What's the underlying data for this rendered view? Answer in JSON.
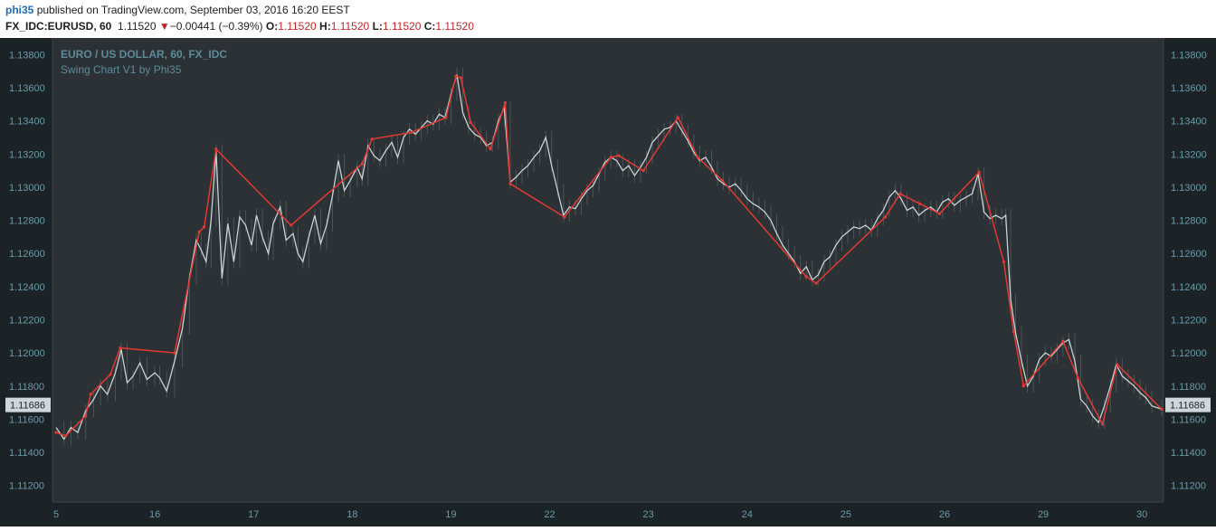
{
  "header": {
    "user": "phi35",
    "published_text": "published on TradingView.com, September 03, 2016 16:20 EEST",
    "symbol": "FX_IDC:EURUSD, 60",
    "last": "1.11520",
    "change": "−0.00441 (−0.39%)",
    "o_label": "O:",
    "o_value": "1.11520",
    "h_label": "H:",
    "h_value": "1.11520",
    "l_label": "L:",
    "l_value": "1.11520",
    "c_label": "C:",
    "c_value": "1.11520"
  },
  "colors": {
    "background": "#243033",
    "swing_line": "#e03a33",
    "price_line": "#c9d3d6",
    "axis_text": "#6a9aab",
    "title_text": "#5e8b9b"
  },
  "chart_data": {
    "type": "line",
    "title": "EURO / US DOLLAR, 60, FX_IDC",
    "subtitle": "Swing Chart V1 by Phi35",
    "xlabel": "",
    "ylabel": "",
    "ylim": [
      1.111,
      1.139
    ],
    "y_ticks": [
      "1.11200",
      "1.11400",
      "1.11600",
      "1.11800",
      "1.12000",
      "1.12200",
      "1.12400",
      "1.12600",
      "1.12800",
      "1.13000",
      "1.13200",
      "1.13400",
      "1.13600",
      "1.13800"
    ],
    "y_tick_values": [
      1.112,
      1.114,
      1.116,
      1.118,
      1.12,
      1.122,
      1.124,
      1.126,
      1.128,
      1.13,
      1.132,
      1.134,
      1.136,
      1.138
    ],
    "x_range": [
      0,
      11.2
    ],
    "x_ticks": [
      "5",
      "16",
      "17",
      "18",
      "19",
      "22",
      "23",
      "24",
      "25",
      "26",
      "29",
      "30"
    ],
    "x_tick_positions": [
      0,
      1,
      2,
      3,
      4,
      5,
      6,
      7,
      8,
      9,
      10,
      11
    ],
    "current_price_label": "1.11686",
    "current_price": 1.11686,
    "grid": false,
    "series": [
      {
        "kind": "swing",
        "points": [
          [
            0,
            1.1152
          ],
          [
            0.1,
            1.115
          ],
          [
            0.3,
            1.1162
          ],
          [
            0.35,
            1.1175
          ],
          [
            0.55,
            1.1187
          ],
          [
            0.65,
            1.1203
          ],
          [
            1.2,
            1.12
          ],
          [
            1.45,
            1.1273
          ],
          [
            1.5,
            1.1276
          ],
          [
            1.62,
            1.1323
          ],
          [
            2.38,
            1.1277
          ],
          [
            3.1,
            1.1314
          ],
          [
            3.2,
            1.1329
          ],
          [
            3.6,
            1.1333
          ],
          [
            3.95,
            1.1342
          ],
          [
            4.05,
            1.1367
          ],
          [
            4.1,
            1.1366
          ],
          [
            4.2,
            1.1339
          ],
          [
            4.4,
            1.1323
          ],
          [
            4.55,
            1.1351
          ],
          [
            4.6,
            1.1302
          ],
          [
            5.15,
            1.1282
          ],
          [
            5.62,
            1.1318
          ],
          [
            5.7,
            1.1319
          ],
          [
            5.95,
            1.131
          ],
          [
            6.3,
            1.1342
          ],
          [
            6.5,
            1.1318
          ],
          [
            6.75,
            1.1304
          ],
          [
            7.6,
            1.1246
          ],
          [
            7.7,
            1.1242
          ],
          [
            8.4,
            1.1282
          ],
          [
            8.55,
            1.1296
          ],
          [
            8.75,
            1.129
          ],
          [
            8.95,
            1.1284
          ],
          [
            9.35,
            1.1309
          ],
          [
            9.6,
            1.1255
          ],
          [
            9.7,
            1.1213
          ],
          [
            9.8,
            1.118
          ],
          [
            10.2,
            1.1207
          ],
          [
            10.35,
            1.1185
          ],
          [
            10.6,
            1.1157
          ],
          [
            10.75,
            1.1193
          ],
          [
            11.2,
            1.1166
          ]
        ]
      },
      {
        "kind": "price",
        "points": [
          [
            0,
            1.1155
          ],
          [
            0.08,
            1.1148
          ],
          [
            0.15,
            1.1155
          ],
          [
            0.22,
            1.1152
          ],
          [
            0.3,
            1.1165
          ],
          [
            0.38,
            1.1172
          ],
          [
            0.45,
            1.118
          ],
          [
            0.52,
            1.1175
          ],
          [
            0.6,
            1.1188
          ],
          [
            0.66,
            1.1202
          ],
          [
            0.72,
            1.1182
          ],
          [
            0.78,
            1.1186
          ],
          [
            0.85,
            1.1194
          ],
          [
            0.92,
            1.1184
          ],
          [
            1.0,
            1.1188
          ],
          [
            1.05,
            1.1185
          ],
          [
            1.12,
            1.1177
          ],
          [
            1.2,
            1.1195
          ],
          [
            1.28,
            1.1215
          ],
          [
            1.35,
            1.1245
          ],
          [
            1.42,
            1.1268
          ],
          [
            1.47,
            1.1262
          ],
          [
            1.52,
            1.1255
          ],
          [
            1.57,
            1.128
          ],
          [
            1.62,
            1.1322
          ],
          [
            1.68,
            1.1245
          ],
          [
            1.74,
            1.1278
          ],
          [
            1.8,
            1.1255
          ],
          [
            1.86,
            1.1282
          ],
          [
            1.92,
            1.1277
          ],
          [
            1.98,
            1.1265
          ],
          [
            2.03,
            1.1283
          ],
          [
            2.09,
            1.127
          ],
          [
            2.15,
            1.126
          ],
          [
            2.2,
            1.1278
          ],
          [
            2.27,
            1.1288
          ],
          [
            2.33,
            1.1268
          ],
          [
            2.4,
            1.1272
          ],
          [
            2.45,
            1.126
          ],
          [
            2.5,
            1.1255
          ],
          [
            2.56,
            1.127
          ],
          [
            2.62,
            1.1283
          ],
          [
            2.68,
            1.1266
          ],
          [
            2.74,
            1.1277
          ],
          [
            2.8,
            1.1295
          ],
          [
            2.86,
            1.1316
          ],
          [
            2.92,
            1.1298
          ],
          [
            2.98,
            1.1304
          ],
          [
            3.05,
            1.1312
          ],
          [
            3.1,
            1.1305
          ],
          [
            3.16,
            1.1325
          ],
          [
            3.22,
            1.1319
          ],
          [
            3.28,
            1.1316
          ],
          [
            3.34,
            1.1322
          ],
          [
            3.4,
            1.1327
          ],
          [
            3.46,
            1.1318
          ],
          [
            3.52,
            1.133
          ],
          [
            3.58,
            1.1335
          ],
          [
            3.64,
            1.1332
          ],
          [
            3.7,
            1.1336
          ],
          [
            3.76,
            1.134
          ],
          [
            3.82,
            1.1338
          ],
          [
            3.88,
            1.1344
          ],
          [
            3.94,
            1.1342
          ],
          [
            4.0,
            1.1356
          ],
          [
            4.06,
            1.1368
          ],
          [
            4.12,
            1.1345
          ],
          [
            4.18,
            1.1336
          ],
          [
            4.24,
            1.1332
          ],
          [
            4.3,
            1.133
          ],
          [
            4.36,
            1.1325
          ],
          [
            4.42,
            1.1327
          ],
          [
            4.48,
            1.134
          ],
          [
            4.54,
            1.1348
          ],
          [
            4.6,
            1.1303
          ],
          [
            4.66,
            1.1306
          ],
          [
            4.72,
            1.131
          ],
          [
            4.78,
            1.1313
          ],
          [
            4.84,
            1.1318
          ],
          [
            4.9,
            1.1322
          ],
          [
            4.96,
            1.133
          ],
          [
            5.02,
            1.1313
          ],
          [
            5.08,
            1.1298
          ],
          [
            5.14,
            1.1283
          ],
          [
            5.2,
            1.1288
          ],
          [
            5.26,
            1.1287
          ],
          [
            5.32,
            1.1293
          ],
          [
            5.38,
            1.1298
          ],
          [
            5.44,
            1.1301
          ],
          [
            5.5,
            1.1308
          ],
          [
            5.56,
            1.1315
          ],
          [
            5.62,
            1.1318
          ],
          [
            5.68,
            1.1316
          ],
          [
            5.74,
            1.131
          ],
          [
            5.8,
            1.1313
          ],
          [
            5.86,
            1.1307
          ],
          [
            5.92,
            1.1312
          ],
          [
            5.98,
            1.1318
          ],
          [
            6.04,
            1.1327
          ],
          [
            6.1,
            1.1331
          ],
          [
            6.16,
            1.1335
          ],
          [
            6.22,
            1.1336
          ],
          [
            6.28,
            1.134
          ],
          [
            6.34,
            1.1334
          ],
          [
            6.4,
            1.1328
          ],
          [
            6.46,
            1.1321
          ],
          [
            6.52,
            1.1316
          ],
          [
            6.58,
            1.1318
          ],
          [
            6.64,
            1.1312
          ],
          [
            6.7,
            1.1305
          ],
          [
            6.76,
            1.1302
          ],
          [
            6.82,
            1.13
          ],
          [
            6.88,
            1.1302
          ],
          [
            6.94,
            1.1298
          ],
          [
            7.0,
            1.1293
          ],
          [
            7.06,
            1.129
          ],
          [
            7.12,
            1.1288
          ],
          [
            7.18,
            1.1285
          ],
          [
            7.24,
            1.128
          ],
          [
            7.3,
            1.1272
          ],
          [
            7.36,
            1.1265
          ],
          [
            7.42,
            1.126
          ],
          [
            7.48,
            1.1255
          ],
          [
            7.54,
            1.1248
          ],
          [
            7.6,
            1.1252
          ],
          [
            7.66,
            1.1244
          ],
          [
            7.72,
            1.1247
          ],
          [
            7.78,
            1.1255
          ],
          [
            7.84,
            1.1258
          ],
          [
            7.9,
            1.1265
          ],
          [
            7.96,
            1.127
          ],
          [
            8.02,
            1.1273
          ],
          [
            8.08,
            1.1276
          ],
          [
            8.14,
            1.1275
          ],
          [
            8.2,
            1.1277
          ],
          [
            8.26,
            1.1274
          ],
          [
            8.32,
            1.1281
          ],
          [
            8.38,
            1.1286
          ],
          [
            8.44,
            1.1294
          ],
          [
            8.5,
            1.1298
          ],
          [
            8.56,
            1.1293
          ],
          [
            8.62,
            1.1286
          ],
          [
            8.68,
            1.1288
          ],
          [
            8.74,
            1.1283
          ],
          [
            8.8,
            1.1286
          ],
          [
            8.86,
            1.1288
          ],
          [
            8.92,
            1.1285
          ],
          [
            8.98,
            1.1291
          ],
          [
            9.04,
            1.1293
          ],
          [
            9.1,
            1.1289
          ],
          [
            9.16,
            1.1292
          ],
          [
            9.22,
            1.1294
          ],
          [
            9.28,
            1.1296
          ],
          [
            9.34,
            1.1308
          ],
          [
            9.4,
            1.1285
          ],
          [
            9.46,
            1.1281
          ],
          [
            9.52,
            1.1283
          ],
          [
            9.58,
            1.1281
          ],
          [
            9.62,
            1.1283
          ],
          [
            9.67,
            1.1232
          ],
          [
            9.72,
            1.1212
          ],
          [
            9.78,
            1.1195
          ],
          [
            9.84,
            1.118
          ],
          [
            9.9,
            1.1186
          ],
          [
            9.96,
            1.1196
          ],
          [
            10.02,
            1.12
          ],
          [
            10.08,
            1.1198
          ],
          [
            10.14,
            1.1202
          ],
          [
            10.2,
            1.1206
          ],
          [
            10.26,
            1.1208
          ],
          [
            10.32,
            1.1195
          ],
          [
            10.38,
            1.1172
          ],
          [
            10.44,
            1.1168
          ],
          [
            10.5,
            1.1162
          ],
          [
            10.56,
            1.1158
          ],
          [
            10.62,
            1.1168
          ],
          [
            10.68,
            1.118
          ],
          [
            10.74,
            1.1193
          ],
          [
            10.8,
            1.1186
          ],
          [
            10.86,
            1.1183
          ],
          [
            10.92,
            1.118
          ],
          [
            10.98,
            1.1176
          ],
          [
            11.04,
            1.1173
          ],
          [
            11.1,
            1.1168
          ],
          [
            11.2,
            1.1166
          ]
        ]
      }
    ]
  }
}
